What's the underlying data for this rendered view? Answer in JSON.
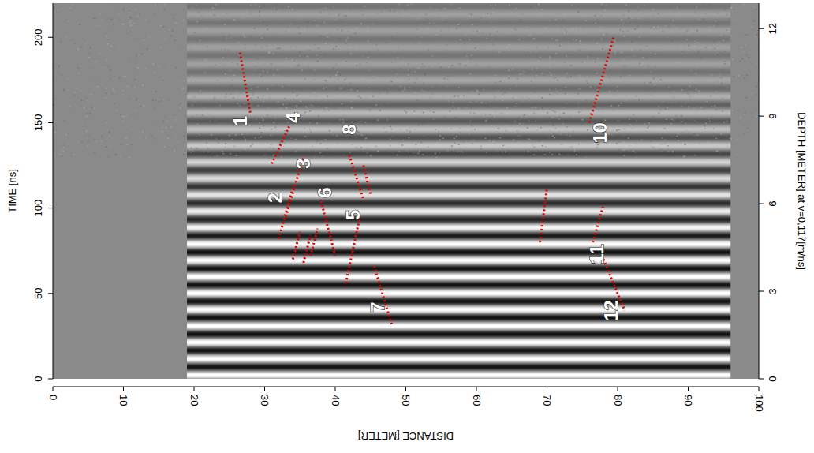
{
  "chart_data": {
    "type": "radargram",
    "x_label": "DISTANCE [METER]",
    "y_label": "TIME [ns]",
    "y2_label": "DEPTH [METER] at v=0,117[m/ns]",
    "xlim": [
      0,
      100
    ],
    "xticks": [
      0,
      10,
      20,
      30,
      40,
      50,
      60,
      70,
      80,
      90,
      100
    ],
    "ylim": [
      0,
      220
    ],
    "yticks": [
      0,
      50,
      100,
      150,
      200
    ],
    "y2lim": [
      0,
      12.87
    ],
    "y2ticks": [
      0,
      3,
      6,
      9,
      12
    ],
    "data_xrange": [
      19,
      96
    ],
    "color": "#e00000",
    "annotations": [
      {
        "label": "1",
        "label_at": [
          26.5,
          151
        ],
        "x": [
          26.5,
          28
        ],
        "t": [
          191,
          155
        ]
      },
      {
        "label": "4",
        "label_at": [
          34,
          153
        ],
        "x": [
          31,
          33.5
        ],
        "t": [
          126,
          148
        ]
      },
      {
        "label": "3",
        "label_at": [
          35.5,
          126
        ],
        "x": [
          33,
          35.5
        ],
        "t": [
          95,
          130
        ]
      },
      {
        "label": "2",
        "label_at": [
          31.5,
          106
        ],
        "x": [
          32,
          34
        ],
        "t": [
          82,
          112
        ]
      },
      {
        "x": [
          34,
          35
        ],
        "t": [
          70,
          86
        ]
      },
      {
        "x": [
          35.5,
          36.5
        ],
        "t": [
          68,
          84
        ]
      },
      {
        "x": [
          36.5,
          37.5
        ],
        "t": [
          72,
          88
        ]
      },
      {
        "label": "6",
        "label_at": [
          38.5,
          109
        ],
        "x": [
          38,
          40
        ],
        "t": [
          104,
          72
        ]
      },
      {
        "label": "5",
        "label_at": [
          42.5,
          96
        ],
        "x": [
          41.5,
          43.5
        ],
        "t": [
          56,
          95
        ]
      },
      {
        "label": "8",
        "label_at": [
          42,
          146
        ],
        "x": [
          42,
          44
        ],
        "t": [
          131,
          105
        ]
      },
      {
        "x": [
          44,
          45
        ],
        "t": [
          125,
          108
        ]
      },
      {
        "label": "7",
        "label_at": [
          46,
          42
        ],
        "x": [
          45.5,
          48
        ],
        "t": [
          66,
          32
        ]
      },
      {
        "x": [
          69,
          70
        ],
        "t": [
          80,
          112
        ]
      },
      {
        "label": "10",
        "label_at": [
          77.5,
          144
        ],
        "x": [
          76,
          79.5
        ],
        "t": [
          150,
          201
        ]
      },
      {
        "label": "11",
        "label_at": [
          77,
          73
        ],
        "x": [
          76.5,
          78
        ],
        "t": [
          80,
          102
        ]
      },
      {
        "label": "12",
        "label_at": [
          79,
          40
        ],
        "x": [
          78,
          81
        ],
        "t": [
          70,
          40
        ]
      }
    ]
  }
}
